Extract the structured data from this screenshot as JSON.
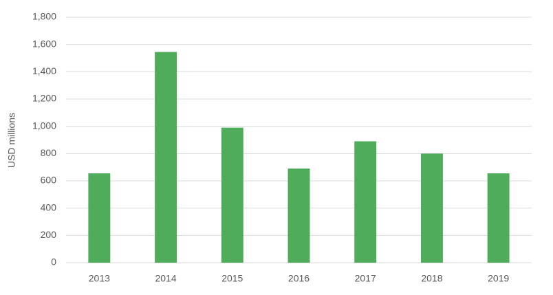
{
  "chart_data": {
    "type": "bar",
    "y_label": "USD millions",
    "categories": [
      "2013",
      "2014",
      "2015",
      "2016",
      "2017",
      "2018",
      "2019"
    ],
    "values": [
      655,
      1545,
      990,
      690,
      890,
      800,
      655
    ],
    "color": "#4eac5b",
    "ylim": [
      0,
      1800
    ],
    "yticks": [
      0,
      200,
      400,
      600,
      800,
      {
        "value": 1000,
        "label": "1,000"
      },
      {
        "value": 1200,
        "label": "1,200"
      },
      {
        "value": 1400,
        "label": "1,400"
      },
      {
        "value": 1600,
        "label": "1,600"
      },
      {
        "value": 1800,
        "label": "1,800"
      }
    ],
    "grid": true
  }
}
